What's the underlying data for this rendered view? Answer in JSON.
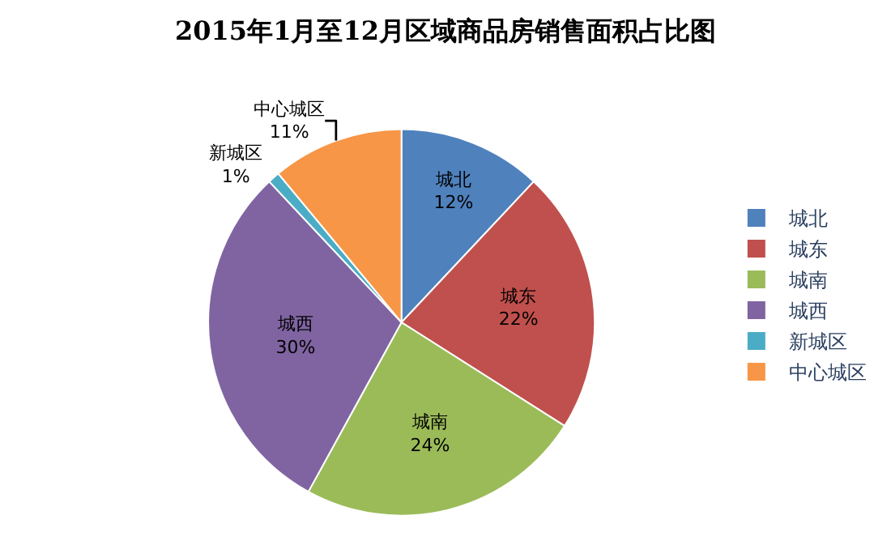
{
  "chart_data": {
    "type": "pie",
    "title": "2015年1月至12月区域商品房销售面积占比图",
    "categories": [
      "城北",
      "城东",
      "城南",
      "城西",
      "新城区",
      "中心城区"
    ],
    "values": [
      12,
      22,
      24,
      30,
      1,
      11
    ],
    "value_labels": [
      "12%",
      "22%",
      "24%",
      "30%",
      "1%",
      "11%"
    ],
    "colors": [
      "#4f81bd",
      "#c0504d",
      "#9bbb59",
      "#8064a2",
      "#4bacc6",
      "#f79646"
    ],
    "legend": "right"
  }
}
